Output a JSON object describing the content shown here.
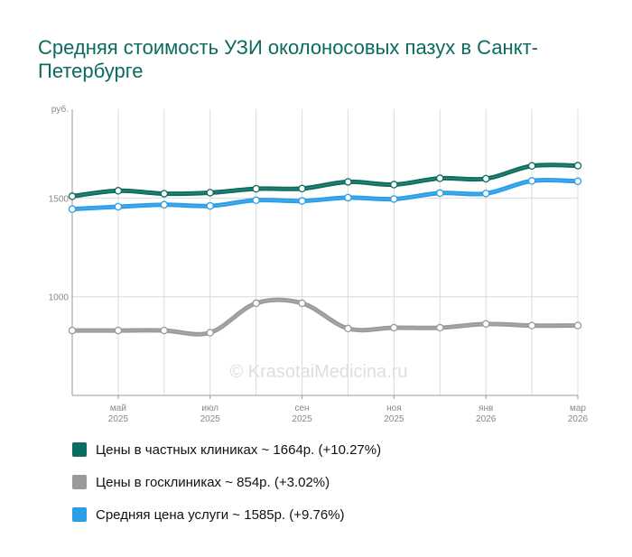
{
  "header": {
    "title": "Средняя стоимость УЗИ околоносовых пазух в Санкт-Петербурге"
  },
  "watermark": "© KrasotaiMedicina.ru",
  "chart_data": {
    "type": "line",
    "ylabel": "руб.",
    "ylim": [
      500,
      1950
    ],
    "y_ticks": [
      {
        "value": 1500,
        "label": "1500"
      },
      {
        "value": 1000,
        "label": "1000"
      }
    ],
    "x": [
      "2025-04",
      "2025-05",
      "2025-06",
      "2025-07",
      "2025-08",
      "2025-09",
      "2025-10",
      "2025-11",
      "2025-12",
      "2026-01",
      "2026-02",
      "2026-03"
    ],
    "x_ticks": [
      {
        "x": "2025-05",
        "month": "май",
        "year": "2025"
      },
      {
        "x": "2025-07",
        "month": "июл",
        "year": "2025"
      },
      {
        "x": "2025-09",
        "month": "сен",
        "year": "2025"
      },
      {
        "x": "2025-11",
        "month": "ноя",
        "year": "2025"
      },
      {
        "x": "2026-01",
        "month": "янв",
        "year": "2026"
      },
      {
        "x": "2026-03",
        "month": "мар",
        "year": "2026"
      }
    ],
    "grid": true,
    "series": [
      {
        "name": "Цены в частных клиниках",
        "color": "#0d6e60",
        "values": [
          1509,
          1537,
          1522,
          1527,
          1547,
          1548,
          1582,
          1568,
          1600,
          1598,
          1663,
          1664
        ]
      },
      {
        "name": "Цены в госклиниках",
        "color": "#9a9a9a",
        "values": [
          829,
          829,
          829,
          818,
          967,
          967,
          839,
          843,
          843,
          862,
          854,
          854
        ]
      },
      {
        "name": "Средняя цена услуги",
        "color": "#2b9ee8",
        "values": [
          1444,
          1456,
          1466,
          1460,
          1489,
          1485,
          1502,
          1495,
          1525,
          1523,
          1587,
          1585
        ]
      }
    ]
  },
  "legend": {
    "items": [
      {
        "label": "Цены в частных клиниках ~ 1664р. (+10.27%)",
        "color": "#0d6e60"
      },
      {
        "label": "Цены в госклиниках ~ 854р. (+3.02%)",
        "color": "#9a9a9a"
      },
      {
        "label": "Средняя цена услуги ~ 1585р. (+9.76%)",
        "color": "#2b9ee8"
      }
    ]
  }
}
